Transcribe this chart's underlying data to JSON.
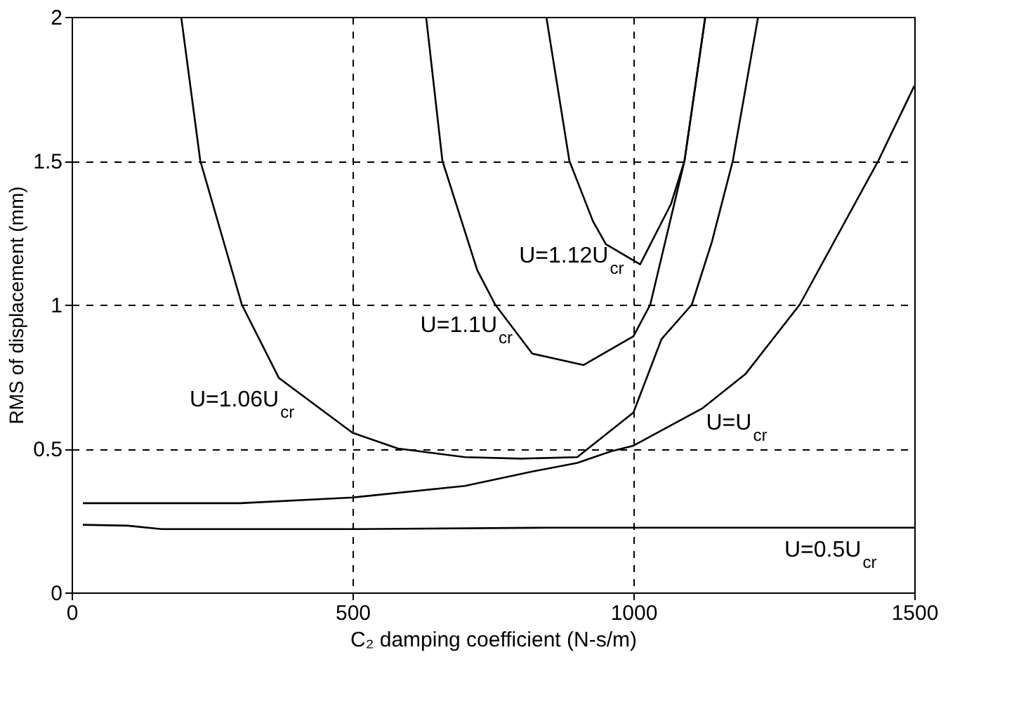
{
  "chart_data": {
    "type": "line",
    "xlabel": "C₂ damping coefficient (N-s/m)",
    "ylabel": "RMS of displacement (mm)",
    "xlim": [
      0,
      1500
    ],
    "xticks": [
      0,
      500,
      1000,
      1500
    ],
    "ylim": [
      0,
      2
    ],
    "yticks": [
      0,
      0.5,
      1,
      1.5,
      2
    ],
    "grid": true,
    "marker": "none",
    "line_style": "solid",
    "series": [
      {
        "color": "#000000",
        "x": [
          20,
          100,
          160,
          500,
          850,
          1500
        ],
        "values": [
          0.235,
          0.232,
          0.22,
          0.22,
          0.225,
          0.225
        ]
      },
      {
        "color": "#000000",
        "x": [
          20,
          300,
          500,
          700,
          820,
          900,
          960,
          1000,
          1123,
          1200,
          1296,
          1436,
          1500
        ],
        "values": [
          0.31,
          0.31,
          0.33,
          0.37,
          0.42,
          0.45,
          0.49,
          0.51,
          0.64,
          0.76,
          1.0,
          1.5,
          1.76
        ]
      },
      {
        "color": "#000000",
        "x": [
          195,
          229,
          303,
          369,
          500,
          581,
          700,
          800,
          900,
          1000,
          1050,
          1104,
          1140,
          1177,
          1222
        ],
        "values": [
          2.0,
          1.5,
          1.0,
          0.745,
          0.555,
          0.5,
          0.47,
          0.465,
          0.47,
          0.625,
          0.88,
          1.0,
          1.22,
          1.5,
          2.0
        ]
      },
      {
        "color": "#000000",
        "x": [
          631,
          660,
          722,
          754,
          820,
          911,
          1000,
          1030,
          1091,
          1128
        ],
        "values": [
          2.0,
          1.5,
          1.12,
          1.0,
          0.83,
          0.79,
          0.89,
          1.0,
          1.5,
          2.0
        ]
      },
      {
        "color": "#000000",
        "x": [
          845,
          886,
          928,
          951,
          1012,
          1067,
          1091,
          1128
        ],
        "values": [
          2.0,
          1.5,
          1.29,
          1.21,
          1.14,
          1.35,
          1.5,
          2.0
        ]
      }
    ],
    "annotations": [
      "U=1.12U$_{cr}$",
      "U=1.1U$_{cr}$",
      "U=1.06U$_{cr}$",
      "U=U$_{cr}$",
      "U=0.5U$_{cr}$"
    ]
  }
}
